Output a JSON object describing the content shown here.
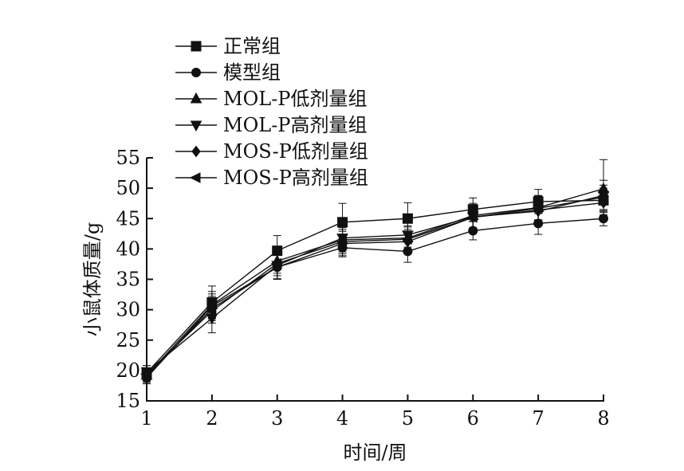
{
  "chart_data": {
    "type": "line",
    "xlabel": "时间/周",
    "ylabel": "小鼠体质量/g",
    "x": [
      1,
      2,
      3,
      4,
      5,
      6,
      7,
      8
    ],
    "xlim": [
      1,
      8
    ],
    "ylim": [
      15,
      55
    ],
    "xticks": [
      "1",
      "2",
      "3",
      "4",
      "5",
      "6",
      "7",
      "8"
    ],
    "yticks": [
      "15",
      "20",
      "25",
      "30",
      "35",
      "40",
      "45",
      "50",
      "55"
    ],
    "grid": false,
    "legend_position": "top-left",
    "series": [
      {
        "name": "正常组",
        "marker": "square",
        "values": [
          19.6,
          31.2,
          39.7,
          44.4,
          45.0,
          46.5,
          47.8,
          48.0
        ],
        "error": [
          1.2,
          2.7,
          2.5,
          3.1,
          2.6,
          1.9,
          2.0,
          2.0
        ]
      },
      {
        "name": "模型组",
        "marker": "circle",
        "values": [
          18.8,
          30.6,
          37.0,
          40.2,
          39.6,
          43.0,
          44.2,
          45.0
        ],
        "error": [
          1.0,
          2.0,
          2.0,
          1.5,
          1.8,
          1.5,
          1.8,
          1.2
        ]
      },
      {
        "name": "MOL-P低剂量组",
        "marker": "triangle-up",
        "values": [
          19.2,
          30.8,
          38.0,
          41.5,
          41.8,
          45.5,
          46.8,
          49.9
        ],
        "error": [
          1.0,
          2.2,
          2.0,
          2.0,
          2.0,
          2.0,
          2.0,
          4.8
        ]
      },
      {
        "name": "MOL-P高剂量组",
        "marker": "triangle-down",
        "values": [
          19.8,
          28.6,
          37.3,
          41.8,
          42.3,
          45.3,
          46.2,
          48.8
        ],
        "error": [
          1.0,
          2.4,
          2.2,
          2.0,
          2.0,
          2.0,
          2.0,
          2.5
        ]
      },
      {
        "name": "MOS-P低剂量组",
        "marker": "diamond",
        "values": [
          19.0,
          30.2,
          37.0,
          40.9,
          41.2,
          45.2,
          46.4,
          47.6
        ],
        "error": [
          1.0,
          2.0,
          2.0,
          2.0,
          2.0,
          2.0,
          2.0,
          2.0
        ]
      },
      {
        "name": "MOS-P高剂量组",
        "marker": "triangle-left",
        "values": [
          19.4,
          29.8,
          37.6,
          41.2,
          41.6,
          45.2,
          46.7,
          48.5
        ],
        "error": [
          1.0,
          2.0,
          2.0,
          2.0,
          2.0,
          2.0,
          2.0,
          2.0
        ]
      }
    ]
  }
}
